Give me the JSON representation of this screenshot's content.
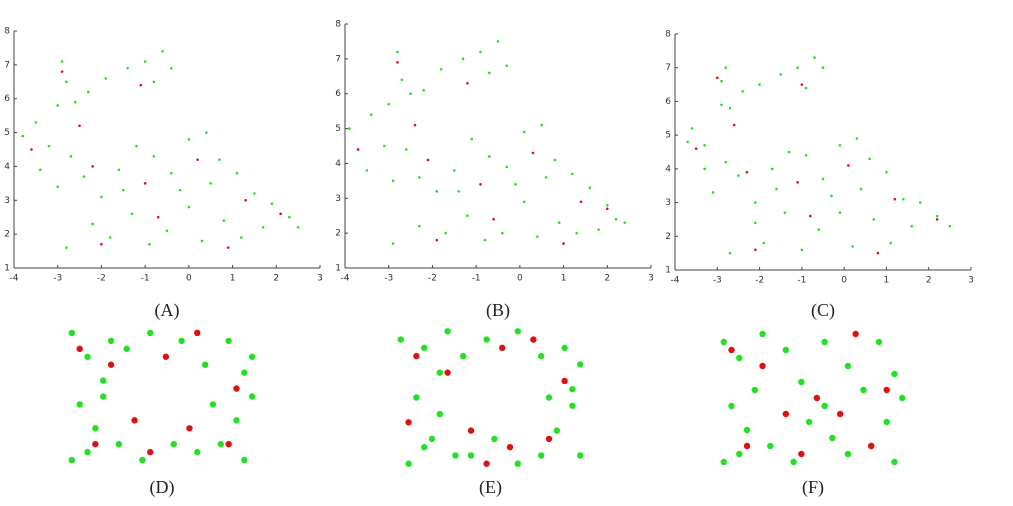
{
  "chart_data": [
    {
      "type": "scatter",
      "caption": "(A)",
      "xlim": [
        -4,
        3
      ],
      "ylim": [
        1,
        8
      ],
      "xticks": [
        -4,
        -3,
        -2,
        -1,
        0,
        1,
        2,
        3
      ],
      "yticks": [
        1,
        2,
        3,
        4,
        5,
        6,
        7,
        8
      ],
      "series": [
        {
          "color": "#22e022",
          "x": [
            -3.8,
            -3.5,
            -3.2,
            -3.0,
            -2.8,
            -2.9,
            -2.6,
            -2.3,
            -1.9,
            -1.4,
            -1.0,
            -0.6,
            -0.4,
            -0.8,
            -3.4,
            -3.0,
            -2.7,
            -2.4,
            -2.0,
            -1.6,
            -1.2,
            -0.8,
            -0.4,
            0.0,
            0.4,
            0.7,
            1.1,
            1.5,
            1.9,
            2.3,
            2.5,
            -2.8,
            -2.2,
            -1.8,
            -1.3,
            -0.9,
            -0.5,
            0.0,
            0.3,
            0.8,
            1.2,
            1.7,
            -0.2,
            0.5,
            -1.5
          ],
          "y": [
            4.9,
            5.3,
            4.6,
            5.8,
            6.5,
            7.1,
            5.9,
            6.2,
            6.6,
            6.9,
            7.1,
            7.4,
            6.9,
            6.5,
            3.9,
            3.4,
            4.3,
            3.7,
            3.1,
            3.9,
            4.6,
            4.3,
            3.8,
            4.8,
            5.0,
            4.2,
            3.8,
            3.2,
            2.9,
            2.5,
            2.2,
            1.6,
            2.3,
            1.9,
            2.6,
            1.7,
            2.1,
            2.8,
            1.8,
            2.4,
            1.9,
            2.2,
            3.3,
            3.5,
            3.3
          ]
        },
        {
          "color": "#e01010",
          "x": [
            -3.6,
            -2.9,
            -2.5,
            -1.1,
            -2.2,
            -1.0,
            0.2,
            1.3,
            2.1,
            -2.0,
            -0.7,
            0.9
          ],
          "y": [
            4.5,
            6.8,
            5.2,
            6.4,
            4.0,
            3.5,
            4.2,
            3.0,
            2.6,
            1.7,
            2.5,
            1.6
          ]
        }
      ]
    },
    {
      "type": "scatter",
      "caption": "(B)",
      "xlim": [
        -4,
        3
      ],
      "ylim": [
        1,
        8
      ],
      "xticks": [
        -4,
        -3,
        -2,
        -1,
        0,
        1,
        2,
        3
      ],
      "yticks": [
        1,
        2,
        3,
        4,
        5,
        6,
        7,
        8
      ],
      "series": [
        {
          "color": "#22e022",
          "x": [
            -3.9,
            -3.4,
            -3.1,
            -3.0,
            -2.7,
            -2.8,
            -2.5,
            -2.2,
            -1.8,
            -1.3,
            -0.9,
            -0.5,
            -0.3,
            -0.7,
            -3.5,
            -2.9,
            -2.6,
            -2.3,
            -1.9,
            -1.5,
            -1.1,
            -0.7,
            -0.3,
            0.1,
            0.5,
            0.8,
            1.2,
            1.6,
            2.0,
            2.2,
            2.4,
            -2.9,
            -2.3,
            -1.7,
            -1.2,
            -0.8,
            -0.4,
            0.1,
            0.4,
            0.9,
            1.3,
            1.8,
            -0.1,
            0.6,
            -1.4
          ],
          "y": [
            5.0,
            5.4,
            4.5,
            5.7,
            6.4,
            7.2,
            6.0,
            6.1,
            6.7,
            7.0,
            7.2,
            7.5,
            6.8,
            6.6,
            3.8,
            3.5,
            4.4,
            3.6,
            3.2,
            3.8,
            4.7,
            4.2,
            3.9,
            4.9,
            5.1,
            4.1,
            3.7,
            3.3,
            2.8,
            2.4,
            2.3,
            1.7,
            2.2,
            2.0,
            2.5,
            1.8,
            2.0,
            2.9,
            1.9,
            2.3,
            2.0,
            2.1,
            3.4,
            3.6,
            3.2
          ]
        },
        {
          "color": "#e01010",
          "x": [
            -3.7,
            -2.8,
            -2.4,
            -1.2,
            -2.1,
            -0.9,
            0.3,
            1.4,
            2.0,
            -1.9,
            -0.6,
            1.0
          ],
          "y": [
            4.4,
            6.9,
            5.1,
            6.3,
            4.1,
            3.4,
            4.3,
            2.9,
            2.7,
            1.8,
            2.4,
            1.7
          ]
        }
      ]
    },
    {
      "type": "scatter",
      "caption": "(C)",
      "xlim": [
        -4,
        3
      ],
      "ylim": [
        1,
        8
      ],
      "xticks": [
        -4,
        -3,
        -2,
        -1,
        0,
        1,
        2,
        3
      ],
      "yticks": [
        1,
        2,
        3,
        4,
        5,
        6,
        7,
        8
      ],
      "series": [
        {
          "color": "#22e022",
          "x": [
            -3.7,
            -3.6,
            -3.3,
            -2.9,
            -2.9,
            -2.8,
            -2.7,
            -2.4,
            -2.0,
            -1.5,
            -1.1,
            -0.7,
            -0.5,
            -0.9,
            -3.3,
            -3.1,
            -2.8,
            -2.5,
            -2.1,
            -1.7,
            -1.3,
            -0.9,
            -0.5,
            -0.1,
            0.3,
            0.6,
            1.0,
            1.4,
            1.8,
            2.2,
            2.5,
            -2.7,
            -2.1,
            -1.9,
            -1.4,
            -1.0,
            -0.6,
            -0.1,
            0.2,
            0.7,
            1.1,
            1.6,
            -0.3,
            0.4,
            -1.6
          ],
          "y": [
            4.8,
            5.2,
            4.7,
            5.9,
            6.6,
            7.0,
            5.8,
            6.3,
            6.5,
            6.8,
            7.0,
            7.3,
            7.0,
            6.4,
            4.0,
            3.3,
            4.2,
            3.8,
            3.0,
            4.0,
            4.5,
            4.4,
            3.7,
            4.7,
            4.9,
            4.3,
            3.9,
            3.1,
            3.0,
            2.6,
            2.3,
            1.5,
            2.4,
            1.8,
            2.7,
            1.6,
            2.2,
            2.7,
            1.7,
            2.5,
            1.8,
            2.3,
            3.2,
            3.4,
            3.4
          ]
        },
        {
          "color": "#e01010",
          "x": [
            -3.5,
            -3.0,
            -2.6,
            -1.0,
            -2.3,
            -1.1,
            0.1,
            1.2,
            2.2,
            -2.1,
            -0.8,
            0.8
          ],
          "y": [
            4.6,
            6.7,
            5.3,
            6.5,
            3.9,
            3.6,
            4.1,
            3.1,
            2.5,
            1.6,
            2.6,
            1.5
          ]
        }
      ]
    },
    {
      "type": "scatter",
      "caption": "(D)",
      "xlim": [
        -3,
        -0.5
      ],
      "ylim": [
        3.6,
        5.4
      ],
      "series": [
        {
          "color": "#22e022",
          "x": [
            -2.9,
            -2.7,
            -2.5,
            -2.8,
            -2.6,
            -2.3,
            -2.9,
            -2.4,
            -2.7,
            -2.2,
            -1.9,
            -1.5,
            -1.2,
            -0.9,
            -0.7,
            -0.6,
            -0.8,
            -1.0,
            -0.7,
            -1.3,
            -1.6,
            -2.0,
            -1.1,
            -0.6,
            -2.5
          ],
          "y": [
            5.3,
            5.0,
            4.7,
            4.4,
            4.1,
            3.9,
            3.7,
            5.2,
            3.8,
            5.1,
            5.3,
            5.2,
            4.9,
            5.2,
            4.8,
            4.5,
            4.2,
            3.9,
            3.7,
            3.8,
            3.9,
            3.7,
            4.4,
            5.0,
            4.5
          ]
        },
        {
          "color": "#e01010",
          "x": [
            -2.8,
            -2.4,
            -2.1,
            -1.7,
            -1.3,
            -0.8,
            -2.6,
            -1.9,
            -1.4,
            -0.9
          ],
          "y": [
            5.1,
            4.9,
            4.2,
            5.0,
            5.3,
            4.6,
            3.9,
            3.8,
            4.1,
            3.9
          ]
        }
      ]
    },
    {
      "type": "scatter",
      "caption": "(E)",
      "xlim": [
        -3,
        -0.5
      ],
      "ylim": [
        3.6,
        5.4
      ],
      "series": [
        {
          "color": "#22e022",
          "x": [
            -2.9,
            -2.6,
            -2.4,
            -2.7,
            -2.5,
            -2.2,
            -2.8,
            -2.3,
            -2.6,
            -2.1,
            -1.8,
            -1.4,
            -1.1,
            -0.8,
            -0.6,
            -0.7,
            -0.9,
            -1.1,
            -0.6,
            -1.4,
            -1.7,
            -2.0,
            -1.0,
            -0.7,
            -2.4
          ],
          "y": [
            5.2,
            5.1,
            4.8,
            4.5,
            4.0,
            3.8,
            3.7,
            5.3,
            3.9,
            5.0,
            5.2,
            5.3,
            5.0,
            5.1,
            4.9,
            4.4,
            4.1,
            3.8,
            3.8,
            3.7,
            4.0,
            3.8,
            4.5,
            4.6,
            4.3
          ]
        },
        {
          "color": "#e01010",
          "x": [
            -2.7,
            -2.3,
            -2.0,
            -1.6,
            -1.2,
            -0.8,
            -2.8,
            -1.8,
            -1.5,
            -1.0
          ],
          "y": [
            5.0,
            4.8,
            4.1,
            5.1,
            5.2,
            4.7,
            4.2,
            3.7,
            3.9,
            4.0
          ]
        }
      ]
    },
    {
      "type": "scatter",
      "caption": "(F)",
      "xlim": [
        -3,
        -0.5
      ],
      "ylim": [
        3.6,
        5.4
      ],
      "series": [
        {
          "color": "#22e022",
          "x": [
            -2.9,
            -2.7,
            -2.5,
            -2.8,
            -2.6,
            -2.3,
            -2.9,
            -2.4,
            -2.7,
            -2.1,
            -1.9,
            -1.6,
            -1.3,
            -0.9,
            -0.7,
            -0.6,
            -0.8,
            -1.0,
            -0.7,
            -1.3,
            -1.6,
            -2.0,
            -1.1,
            -1.8,
            -1.5
          ],
          "y": [
            5.2,
            5.0,
            4.6,
            4.4,
            4.1,
            3.9,
            3.7,
            5.3,
            3.8,
            5.1,
            4.7,
            5.2,
            4.9,
            5.2,
            4.8,
            4.5,
            4.2,
            3.9,
            3.7,
            3.8,
            4.4,
            3.7,
            4.6,
            4.2,
            4.0
          ]
        },
        {
          "color": "#e01010",
          "x": [
            -2.8,
            -2.4,
            -2.1,
            -1.7,
            -1.2,
            -0.8,
            -2.6,
            -1.9,
            -1.4,
            -1.0
          ],
          "y": [
            5.1,
            4.9,
            4.3,
            4.5,
            5.3,
            4.6,
            3.9,
            3.8,
            4.3,
            3.9
          ]
        }
      ]
    }
  ]
}
